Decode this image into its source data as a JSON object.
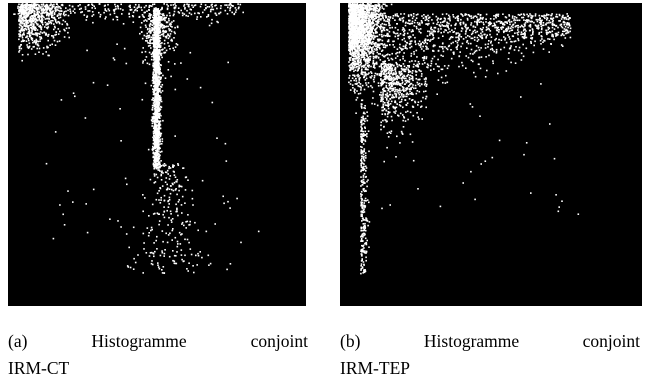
{
  "figure": {
    "panels": [
      {
        "label": "(a)",
        "caption_lines": [
          "Histogramme conjoint",
          "IRM-CT"
        ]
      },
      {
        "label": "(b)",
        "caption_lines": [
          "Histogramme conjoint",
          "IRM-TEP"
        ]
      }
    ]
  }
}
